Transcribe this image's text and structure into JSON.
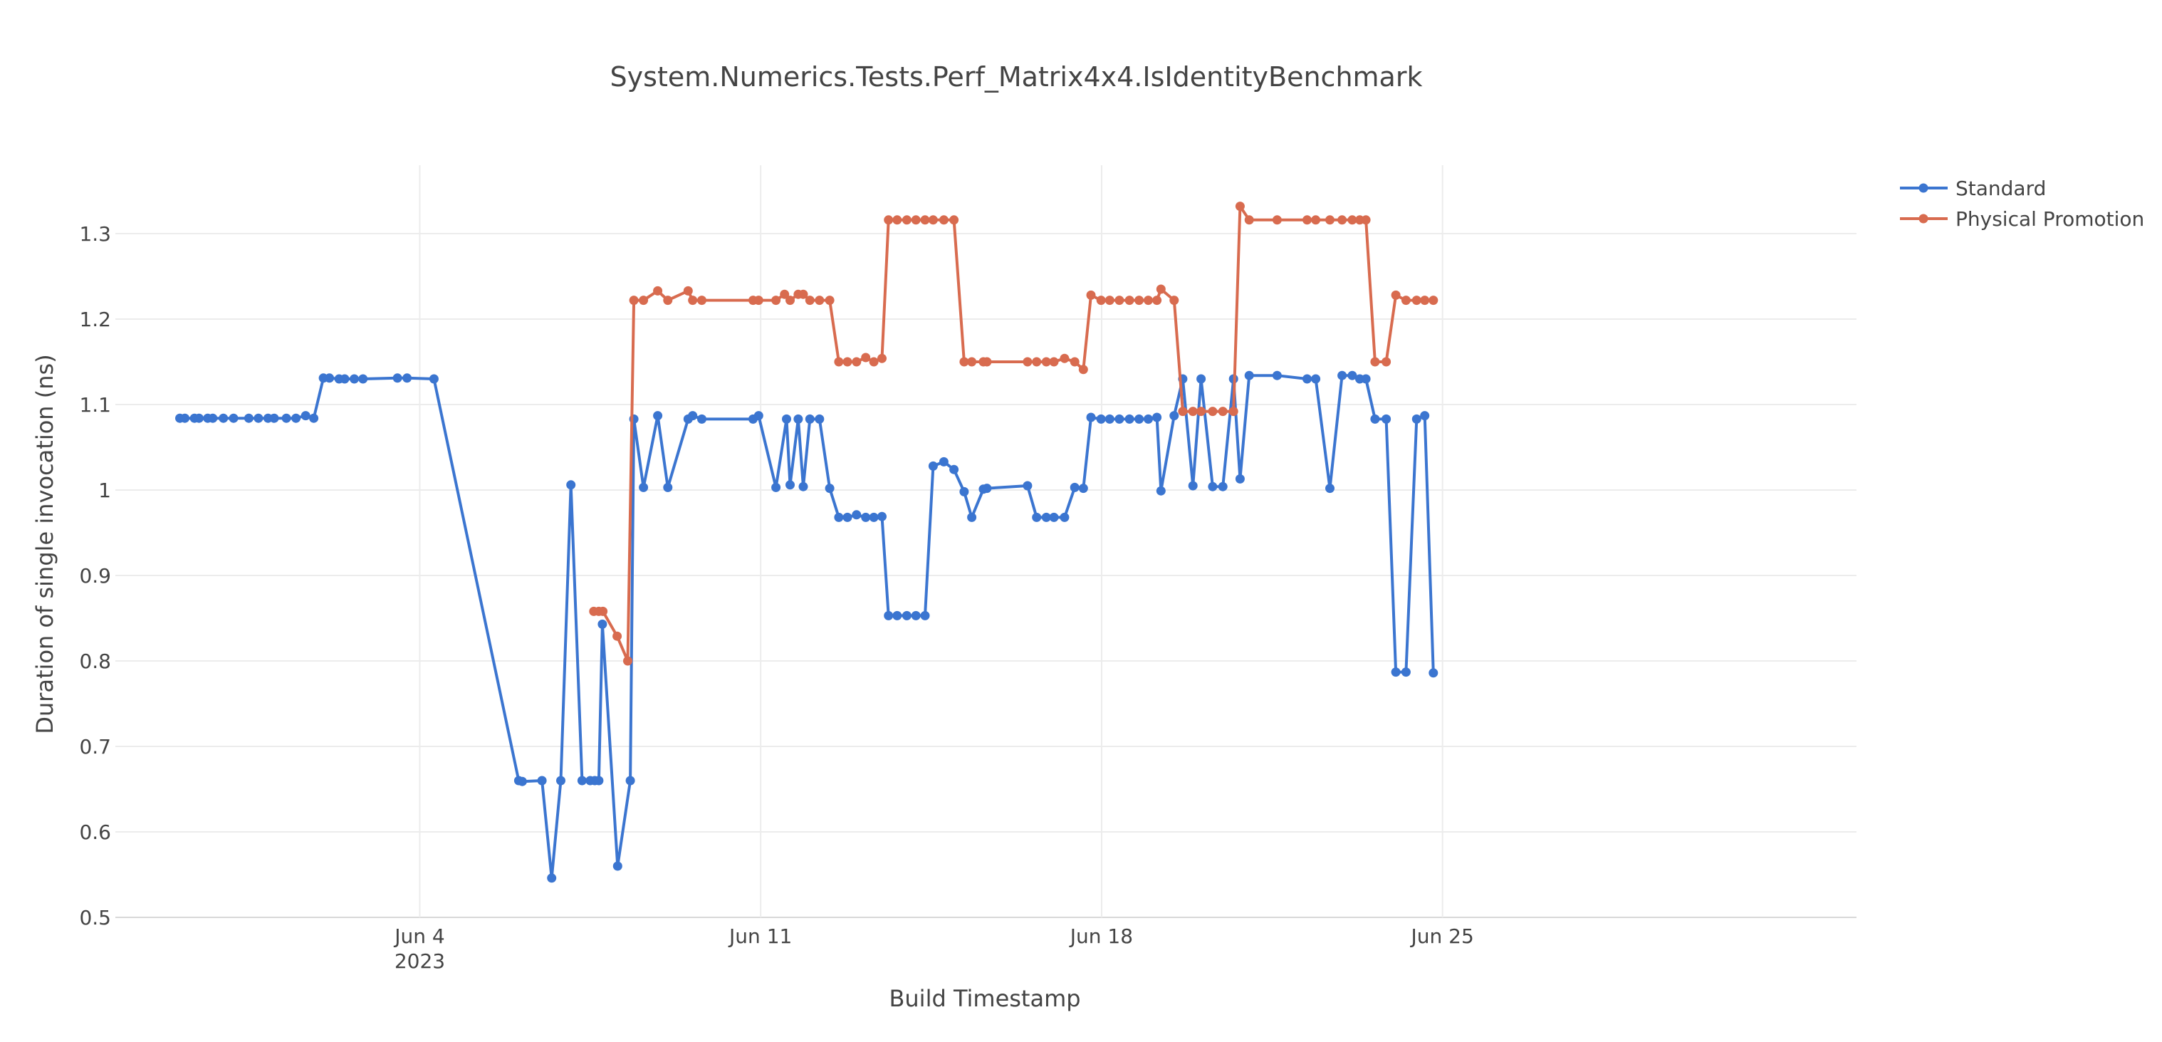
{
  "chart_data": {
    "type": "line",
    "title": "System.Numerics.Tests.Perf_Matrix4x4.IsIdentityBenchmark",
    "xlabel": "Build Timestamp",
    "ylabel": "Duration of single invocation (ns)",
    "xlim": [
      "2023-05-28T18:00",
      "2023-07-03T12:00"
    ],
    "ylim": [
      0.5,
      1.38
    ],
    "y_ticks": [
      0.5,
      0.6,
      0.7,
      0.8,
      0.9,
      1,
      1.1,
      1.2,
      1.3
    ],
    "y_tick_labels": [
      "0.5",
      "0.6",
      "0.7",
      "0.8",
      "0.9",
      "1",
      "1.1",
      "1.2",
      "1.3"
    ],
    "x_ticks": [
      {
        "date": "2023-06-04",
        "label": "Jun 4",
        "sublabel": "2023"
      },
      {
        "date": "2023-06-11",
        "label": "Jun 11",
        "sublabel": ""
      },
      {
        "date": "2023-06-18",
        "label": "Jun 18",
        "sublabel": ""
      },
      {
        "date": "2023-06-25",
        "label": "Jun 25",
        "sublabel": ""
      }
    ],
    "grid": true,
    "legend_position": "top-right",
    "series": [
      {
        "name": "Standard",
        "color": "#3b75d0",
        "points": [
          [
            "2023-05-30T01:45",
            1.084
          ],
          [
            "2023-05-30T04:15",
            1.084
          ],
          [
            "2023-05-30T09:00",
            1.084
          ],
          [
            "2023-05-30T11:15",
            1.084
          ],
          [
            "2023-05-30T15:30",
            1.084
          ],
          [
            "2023-05-30T18:00",
            1.084
          ],
          [
            "2023-05-30T23:15",
            1.084
          ],
          [
            "2023-05-31T04:15",
            1.084
          ],
          [
            "2023-05-31T11:45",
            1.084
          ],
          [
            "2023-05-31T16:30",
            1.084
          ],
          [
            "2023-05-31T21:15",
            1.084
          ],
          [
            "2023-06-01T00:15",
            1.084
          ],
          [
            "2023-06-01T06:15",
            1.084
          ],
          [
            "2023-06-01T11:00",
            1.084
          ],
          [
            "2023-06-01T15:45",
            1.087
          ],
          [
            "2023-06-01T19:45",
            1.084
          ],
          [
            "2023-06-02T00:30",
            1.131
          ],
          [
            "2023-06-02T03:30",
            1.131
          ],
          [
            "2023-06-02T08:15",
            1.13
          ],
          [
            "2023-06-02T11:00",
            1.13
          ],
          [
            "2023-06-02T15:45",
            1.13
          ],
          [
            "2023-06-02T20:00",
            1.13
          ],
          [
            "2023-06-03T13:00",
            1.131
          ],
          [
            "2023-06-03T17:45",
            1.131
          ],
          [
            "2023-06-04T07:00",
            1.13
          ],
          [
            "2023-06-06T00:45",
            0.66
          ],
          [
            "2023-06-06T02:30",
            0.659
          ],
          [
            "2023-06-06T12:15",
            0.66
          ],
          [
            "2023-06-06T17:00",
            0.546
          ],
          [
            "2023-06-06T21:30",
            0.66
          ],
          [
            "2023-06-07T02:30",
            1.006
          ],
          [
            "2023-06-07T08:00",
            0.66
          ],
          [
            "2023-06-07T12:00",
            0.66
          ],
          [
            "2023-06-07T14:15",
            0.66
          ],
          [
            "2023-06-07T16:15",
            0.66
          ],
          [
            "2023-06-07T18:00",
            0.843
          ],
          [
            "2023-06-08T01:30",
            0.56
          ],
          [
            "2023-06-08T07:45",
            0.66
          ],
          [
            "2023-06-08T09:30",
            1.083
          ],
          [
            "2023-06-08T14:15",
            1.003
          ],
          [
            "2023-06-08T21:15",
            1.087
          ],
          [
            "2023-06-09T02:15",
            1.003
          ],
          [
            "2023-06-09T12:15",
            1.083
          ],
          [
            "2023-06-09T14:30",
            1.087
          ],
          [
            "2023-06-09T19:00",
            1.083
          ],
          [
            "2023-06-10T20:15",
            1.083
          ],
          [
            "2023-06-10T23:00",
            1.087
          ],
          [
            "2023-06-11T07:30",
            1.003
          ],
          [
            "2023-06-11T12:45",
            1.083
          ],
          [
            "2023-06-11T14:30",
            1.006
          ],
          [
            "2023-06-11T18:30",
            1.083
          ],
          [
            "2023-06-11T21:00",
            1.004
          ],
          [
            "2023-06-12T00:15",
            1.083
          ],
          [
            "2023-06-12T05:00",
            1.083
          ],
          [
            "2023-06-12T10:00",
            1.002
          ],
          [
            "2023-06-12T14:30",
            0.968
          ],
          [
            "2023-06-12T18:45",
            0.968
          ],
          [
            "2023-06-12T23:15",
            0.971
          ],
          [
            "2023-06-13T03:45",
            0.968
          ],
          [
            "2023-06-13T07:45",
            0.968
          ],
          [
            "2023-06-13T11:45",
            0.969
          ],
          [
            "2023-06-13T15:00",
            0.853
          ],
          [
            "2023-06-13T19:15",
            0.853
          ],
          [
            "2023-06-14T00:00",
            0.853
          ],
          [
            "2023-06-14T04:30",
            0.853
          ],
          [
            "2023-06-14T09:00",
            0.853
          ],
          [
            "2023-06-14T13:00",
            1.028
          ],
          [
            "2023-06-14T18:15",
            1.033
          ],
          [
            "2023-06-14T23:15",
            1.024
          ],
          [
            "2023-06-15T04:15",
            0.998
          ],
          [
            "2023-06-15T08:00",
            0.968
          ],
          [
            "2023-06-15T13:45",
            1.001
          ],
          [
            "2023-06-15T15:30",
            1.002
          ],
          [
            "2023-06-16T11:30",
            1.005
          ],
          [
            "2023-06-16T16:00",
            0.968
          ],
          [
            "2023-06-16T20:45",
            0.968
          ],
          [
            "2023-06-17T00:30",
            0.968
          ],
          [
            "2023-06-17T05:45",
            0.968
          ],
          [
            "2023-06-17T10:45",
            1.003
          ],
          [
            "2023-06-17T15:00",
            1.002
          ],
          [
            "2023-06-17T18:45",
            1.085
          ],
          [
            "2023-06-17T23:45",
            1.083
          ],
          [
            "2023-06-18T04:00",
            1.083
          ],
          [
            "2023-06-18T08:45",
            1.083
          ],
          [
            "2023-06-18T13:45",
            1.083
          ],
          [
            "2023-06-18T18:30",
            1.083
          ],
          [
            "2023-06-18T23:00",
            1.083
          ],
          [
            "2023-06-19T03:15",
            1.085
          ],
          [
            "2023-06-19T05:15",
            0.999
          ],
          [
            "2023-06-19T11:45",
            1.087
          ],
          [
            "2023-06-19T16:00",
            1.13
          ],
          [
            "2023-06-19T21:00",
            1.005
          ],
          [
            "2023-06-20T01:00",
            1.13
          ],
          [
            "2023-06-20T06:45",
            1.004
          ],
          [
            "2023-06-20T11:45",
            1.004
          ],
          [
            "2023-06-20T17:00",
            1.13
          ],
          [
            "2023-06-20T20:15",
            1.013
          ],
          [
            "2023-06-21T00:45",
            1.134
          ],
          [
            "2023-06-21T14:30",
            1.134
          ],
          [
            "2023-06-22T05:15",
            1.13
          ],
          [
            "2023-06-22T09:30",
            1.13
          ],
          [
            "2023-06-22T16:30",
            1.002
          ],
          [
            "2023-06-22T22:30",
            1.134
          ],
          [
            "2023-06-23T03:30",
            1.134
          ],
          [
            "2023-06-23T07:15",
            1.13
          ],
          [
            "2023-06-23T10:15",
            1.13
          ],
          [
            "2023-06-23T14:45",
            1.083
          ],
          [
            "2023-06-23T20:15",
            1.083
          ],
          [
            "2023-06-24T01:00",
            0.787
          ],
          [
            "2023-06-24T06:00",
            0.787
          ],
          [
            "2023-06-24T11:15",
            1.083
          ],
          [
            "2023-06-24T15:15",
            1.087
          ],
          [
            "2023-06-24T19:30",
            0.786
          ]
        ]
      },
      {
        "name": "Physical Promotion",
        "color": "#d86b4f",
        "points": [
          [
            "2023-06-07T13:45",
            0.858
          ],
          [
            "2023-06-07T16:15",
            0.858
          ],
          [
            "2023-06-07T18:15",
            0.858
          ],
          [
            "2023-06-08T01:15",
            0.829
          ],
          [
            "2023-06-08T06:30",
            0.8
          ],
          [
            "2023-06-08T09:30",
            1.222
          ],
          [
            "2023-06-08T14:15",
            1.222
          ],
          [
            "2023-06-08T21:15",
            1.233
          ],
          [
            "2023-06-09T02:15",
            1.222
          ],
          [
            "2023-06-09T12:15",
            1.233
          ],
          [
            "2023-06-09T14:30",
            1.222
          ],
          [
            "2023-06-09T19:00",
            1.222
          ],
          [
            "2023-06-10T20:15",
            1.222
          ],
          [
            "2023-06-10T23:00",
            1.222
          ],
          [
            "2023-06-11T07:30",
            1.222
          ],
          [
            "2023-06-11T11:45",
            1.229
          ],
          [
            "2023-06-11T14:30",
            1.222
          ],
          [
            "2023-06-11T18:30",
            1.229
          ],
          [
            "2023-06-11T21:00",
            1.229
          ],
          [
            "2023-06-12T00:15",
            1.222
          ],
          [
            "2023-06-12T05:00",
            1.222
          ],
          [
            "2023-06-12T10:00",
            1.222
          ],
          [
            "2023-06-12T14:30",
            1.15
          ],
          [
            "2023-06-12T18:45",
            1.15
          ],
          [
            "2023-06-12T23:15",
            1.15
          ],
          [
            "2023-06-13T03:45",
            1.155
          ],
          [
            "2023-06-13T07:45",
            1.15
          ],
          [
            "2023-06-13T11:45",
            1.154
          ],
          [
            "2023-06-13T15:00",
            1.316
          ],
          [
            "2023-06-13T19:15",
            1.316
          ],
          [
            "2023-06-14T00:00",
            1.316
          ],
          [
            "2023-06-14T04:30",
            1.316
          ],
          [
            "2023-06-14T09:00",
            1.316
          ],
          [
            "2023-06-14T13:00",
            1.316
          ],
          [
            "2023-06-14T18:15",
            1.316
          ],
          [
            "2023-06-14T23:15",
            1.316
          ],
          [
            "2023-06-15T04:15",
            1.15
          ],
          [
            "2023-06-15T08:00",
            1.15
          ],
          [
            "2023-06-15T13:45",
            1.15
          ],
          [
            "2023-06-15T15:30",
            1.15
          ],
          [
            "2023-06-16T11:30",
            1.15
          ],
          [
            "2023-06-16T16:00",
            1.15
          ],
          [
            "2023-06-16T20:45",
            1.15
          ],
          [
            "2023-06-17T00:30",
            1.15
          ],
          [
            "2023-06-17T05:45",
            1.154
          ],
          [
            "2023-06-17T10:45",
            1.15
          ],
          [
            "2023-06-17T15:00",
            1.141
          ],
          [
            "2023-06-17T18:45",
            1.228
          ],
          [
            "2023-06-17T23:45",
            1.222
          ],
          [
            "2023-06-18T04:00",
            1.222
          ],
          [
            "2023-06-18T08:45",
            1.222
          ],
          [
            "2023-06-18T13:45",
            1.222
          ],
          [
            "2023-06-18T18:30",
            1.222
          ],
          [
            "2023-06-18T23:00",
            1.222
          ],
          [
            "2023-06-19T03:15",
            1.222
          ],
          [
            "2023-06-19T05:15",
            1.235
          ],
          [
            "2023-06-19T11:45",
            1.222
          ],
          [
            "2023-06-19T16:00",
            1.092
          ],
          [
            "2023-06-19T21:00",
            1.092
          ],
          [
            "2023-06-20T01:00",
            1.092
          ],
          [
            "2023-06-20T06:45",
            1.092
          ],
          [
            "2023-06-20T11:45",
            1.092
          ],
          [
            "2023-06-20T17:00",
            1.092
          ],
          [
            "2023-06-20T20:15",
            1.332
          ],
          [
            "2023-06-21T00:45",
            1.316
          ],
          [
            "2023-06-21T14:30",
            1.316
          ],
          [
            "2023-06-22T05:15",
            1.316
          ],
          [
            "2023-06-22T09:30",
            1.316
          ],
          [
            "2023-06-22T16:30",
            1.316
          ],
          [
            "2023-06-22T22:30",
            1.316
          ],
          [
            "2023-06-23T03:30",
            1.316
          ],
          [
            "2023-06-23T07:15",
            1.316
          ],
          [
            "2023-06-23T10:15",
            1.316
          ],
          [
            "2023-06-23T14:45",
            1.15
          ],
          [
            "2023-06-23T20:15",
            1.15
          ],
          [
            "2023-06-24T01:00",
            1.228
          ],
          [
            "2023-06-24T06:00",
            1.222
          ],
          [
            "2023-06-24T11:15",
            1.222
          ],
          [
            "2023-06-24T15:15",
            1.222
          ],
          [
            "2023-06-24T19:30",
            1.222
          ]
        ]
      }
    ]
  }
}
